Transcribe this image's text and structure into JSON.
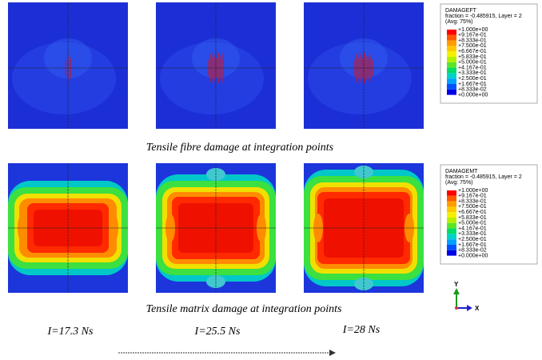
{
  "figure": {
    "rows": [
      {
        "caption": "Tensile fibre damage at integration points",
        "legend": {
          "title": "DAMAGEFT",
          "lines": [
            "fraction = -0.485915, Layer = 2",
            "(Avg: 75%)"
          ],
          "labels": [
            "+1.000e+00",
            "+9.167e-01",
            "+8.333e-01",
            "+7.500e-01",
            "+6.667e-01",
            "+5.833e-01",
            "+5.000e-01",
            "+4.167e-01",
            "+3.333e-01",
            "+2.500e-01",
            "+1.667e-01",
            "+8.333e-02",
            "+0.000e+00"
          ]
        }
      },
      {
        "caption": "Tensile matrix damage at integration points",
        "legend": {
          "title": "DAMAGEMT",
          "lines": [
            "fraction = -0.485915, Layer = 2",
            "(Avg: 75%)"
          ],
          "labels": [
            "+1.000e+00",
            "+9.167e-01",
            "+8.333e-01",
            "+7.500e-01",
            "+6.667e-01",
            "+5.833e-01",
            "+5.000e-01",
            "+4.167e-01",
            "+3.333e-01",
            "+2.500e-01",
            "+1.667e-01",
            "+8.333e-02",
            "+0.000e+00"
          ]
        }
      }
    ],
    "times": [
      "I=17.3 Ns",
      "I=25.5 Ns",
      "I=28 Ns"
    ],
    "axes": {
      "y": "Y",
      "x": "X"
    }
  }
}
